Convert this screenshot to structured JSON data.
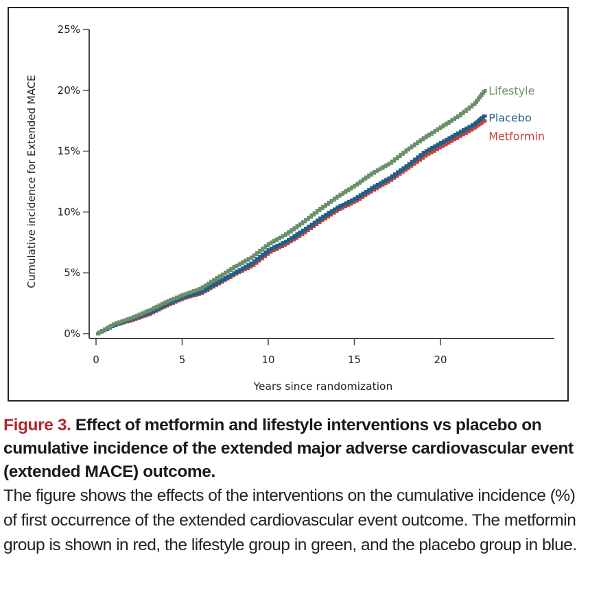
{
  "chart_data": {
    "type": "line",
    "title": "",
    "xlabel": "Years since randomization",
    "ylabel": "Cumulative incidence for Extended MACE",
    "xlim": [
      0,
      26.5
    ],
    "ylim": [
      0,
      25
    ],
    "x_ticks": [
      0,
      5,
      10,
      15,
      20
    ],
    "x_tick_labels": [
      "0",
      "5",
      "10",
      "15",
      "20"
    ],
    "y_ticks": [
      0,
      5,
      10,
      15,
      20,
      25
    ],
    "y_tick_labels": [
      "0%",
      "5%",
      "10%",
      "15%",
      "20%",
      "25%"
    ],
    "grid": false,
    "legend": "direct labels at line ends (right)",
    "series": [
      {
        "name": "Lifestyle",
        "color": "#6a8f6b",
        "x": [
          0,
          1,
          2,
          3,
          4,
          5,
          6,
          7,
          8,
          9,
          10,
          11,
          12,
          13,
          14,
          15,
          16,
          17,
          18,
          19,
          20,
          21,
          22,
          22.6
        ],
        "y": [
          0,
          0.8,
          1.3,
          1.9,
          2.6,
          3.2,
          3.7,
          4.6,
          5.5,
          6.3,
          7.4,
          8.2,
          9.2,
          10.3,
          11.3,
          12.2,
          13.2,
          14.0,
          15.1,
          16.1,
          17.0,
          17.9,
          19.0,
          20.1
        ]
      },
      {
        "name": "Placebo",
        "color": "#1f5f8b",
        "x": [
          0,
          1,
          2,
          3,
          4,
          5,
          6,
          7,
          8,
          9,
          10,
          11,
          12,
          13,
          14,
          15,
          16,
          17,
          18,
          19,
          20,
          21,
          22,
          22.6
        ],
        "y": [
          0,
          0.7,
          1.2,
          1.7,
          2.4,
          3.0,
          3.4,
          4.2,
          5.0,
          5.8,
          6.9,
          7.6,
          8.5,
          9.5,
          10.4,
          11.1,
          12.0,
          12.8,
          13.8,
          14.9,
          15.7,
          16.5,
          17.3,
          18.0
        ]
      },
      {
        "name": "Metformin",
        "color": "#c0443d",
        "x": [
          0,
          1,
          2,
          3,
          4,
          5,
          6,
          7,
          8,
          9,
          10,
          11,
          12,
          13,
          14,
          15,
          16,
          17,
          18,
          19,
          20,
          21,
          22,
          22.6
        ],
        "y": [
          0,
          0.7,
          1.1,
          1.6,
          2.3,
          2.9,
          3.3,
          4.1,
          4.9,
          5.6,
          6.7,
          7.4,
          8.3,
          9.3,
          10.2,
          10.9,
          11.8,
          12.6,
          13.6,
          14.6,
          15.4,
          16.2,
          17.0,
          17.6
        ]
      }
    ]
  },
  "caption": {
    "figure_label": "Figure 3.",
    "title": " Effect of metformin and lifestyle interventions vs placebo on cumulative incidence of the extended major adverse cardiovascular event (extended MACE) outcome.",
    "body": "The figure shows the effects of the interventions on the cumulative incidence (%) of first occurrence of the extended cardiovascular event outcome. The metformin group is shown in red, the lifestyle group in green, and the placebo group in blue."
  }
}
